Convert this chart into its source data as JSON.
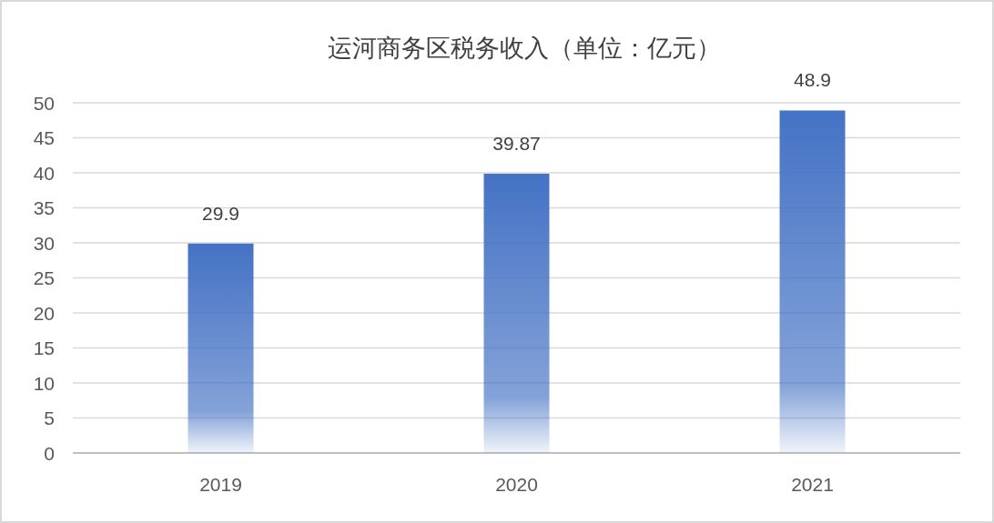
{
  "chart_data": {
    "type": "bar",
    "title": "运河商务区税务收入（单位：亿元）",
    "categories": [
      "2019",
      "2020",
      "2021"
    ],
    "values": [
      29.9,
      39.87,
      48.9
    ],
    "color": "#4472c4",
    "ylim": [
      0,
      50
    ],
    "yticks": [
      0,
      5,
      10,
      15,
      20,
      25,
      30,
      35,
      40,
      45,
      50
    ],
    "grid": "y",
    "data_labels": true
  }
}
